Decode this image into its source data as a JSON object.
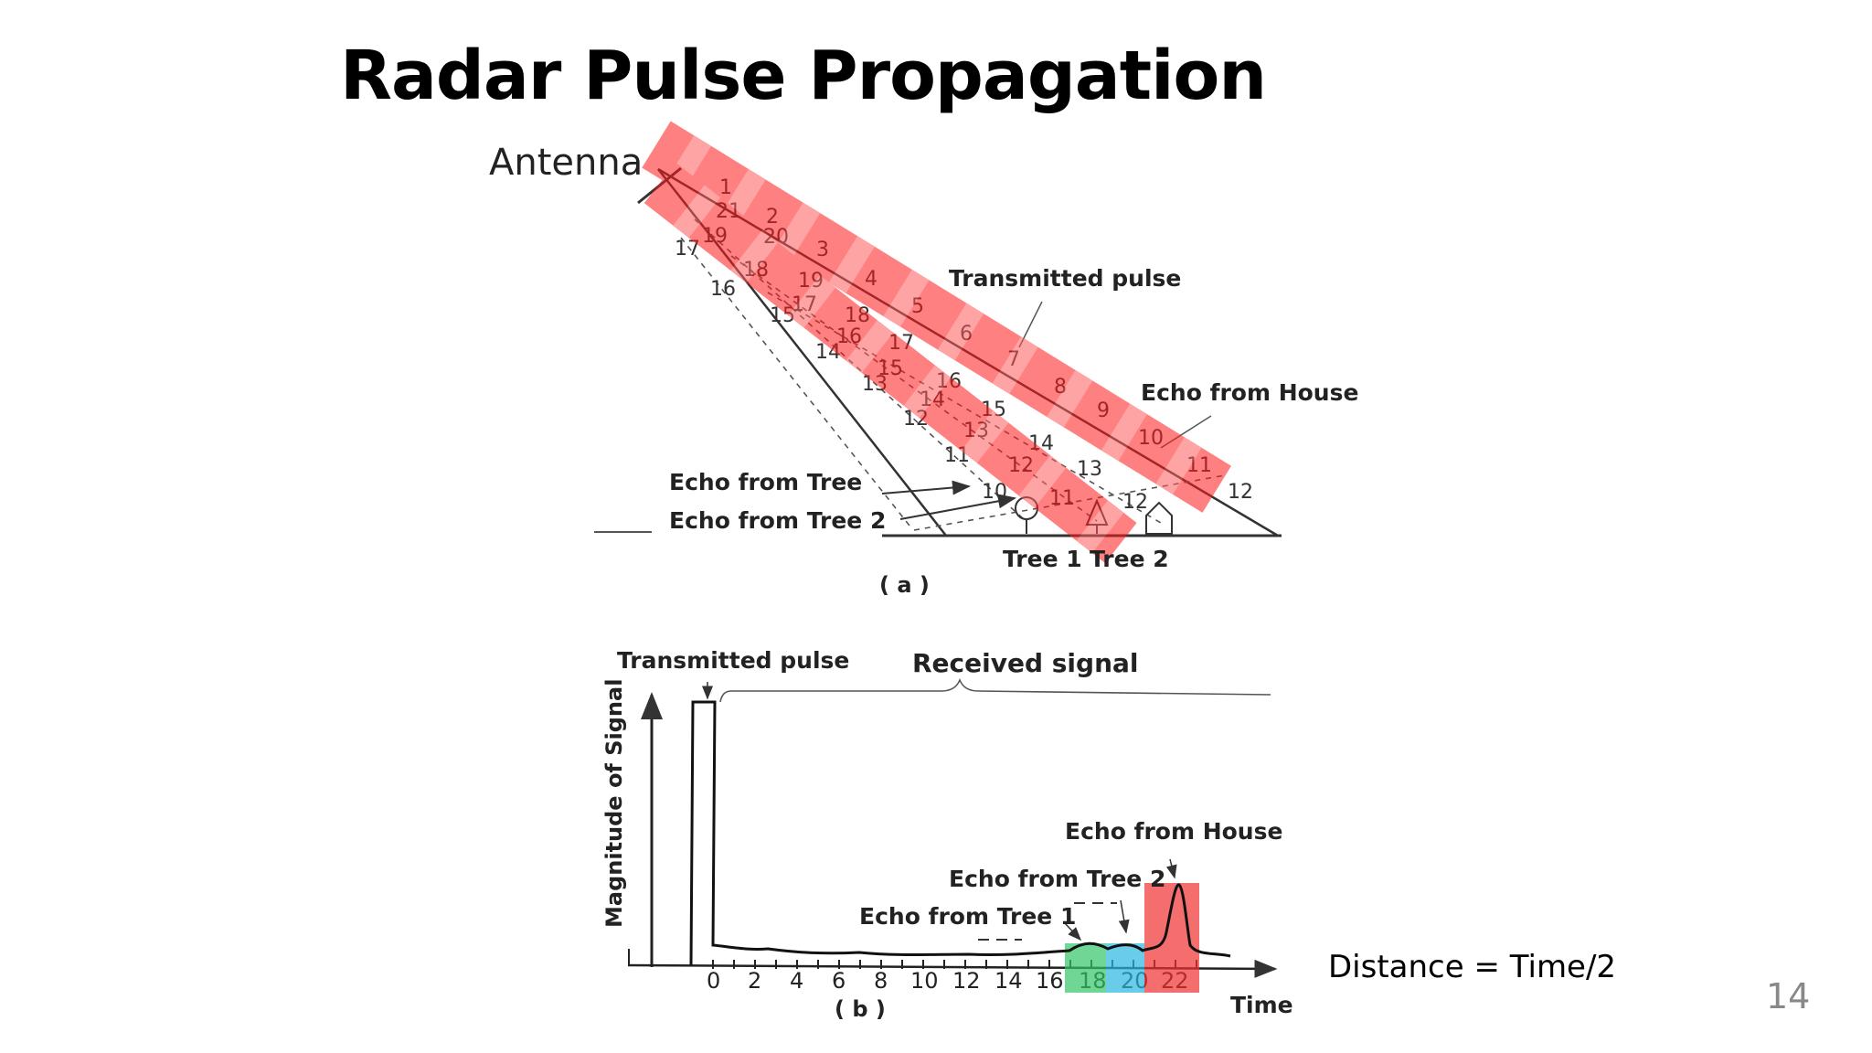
{
  "slide": {
    "title": "Radar Pulse Propagation",
    "formula": "Distance = Time/2",
    "page_number": "14"
  },
  "panel_a": {
    "antenna_label": "Antenna",
    "transmitted_pulse_label": "Transmitted pulse",
    "echo_house_label": "Echo from House",
    "echo_tree_label": "Echo from Tree",
    "echo_tree2_label": "Echo from Tree 2",
    "tree1_label": "Tree 1",
    "tree2_label": "Tree 2",
    "caption": "( a )",
    "pulse_numbers": [
      "1",
      "2",
      "3",
      "4",
      "5",
      "6",
      "7",
      "8",
      "9",
      "10",
      "11",
      "12"
    ],
    "left_beam_numbers": [
      "17",
      "16",
      "15",
      "14",
      "13",
      "12",
      "11",
      "10"
    ],
    "echo_numbers_row1": [
      "19",
      "18",
      "17",
      "16",
      "15",
      "14",
      "13",
      "12",
      "11"
    ],
    "echo_numbers_row2": [
      "21",
      "20",
      "19",
      "18",
      "17",
      "16",
      "15",
      "14",
      "13",
      "12"
    ]
  },
  "panel_b": {
    "transmitted_pulse_label": "Transmitted pulse",
    "received_signal_label": "Received signal",
    "y_axis_label": "Magnitude of Signal",
    "x_axis_label": "Time",
    "caption": "( b )",
    "echo_house_label": "Echo from House",
    "echo_tree2_label": "Echo from Tree 2",
    "echo_tree1_label": "Echo from Tree 1",
    "x_ticks": [
      "0",
      "2",
      "4",
      "6",
      "8",
      "10",
      "12",
      "14",
      "16",
      "18",
      "20",
      "22"
    ]
  },
  "highlight_colors": {
    "pulse_overlay": "#ff1a1a",
    "tree1_band": "#33c46a",
    "tree2_band": "#29b6e0",
    "house_band": "#f03030"
  }
}
